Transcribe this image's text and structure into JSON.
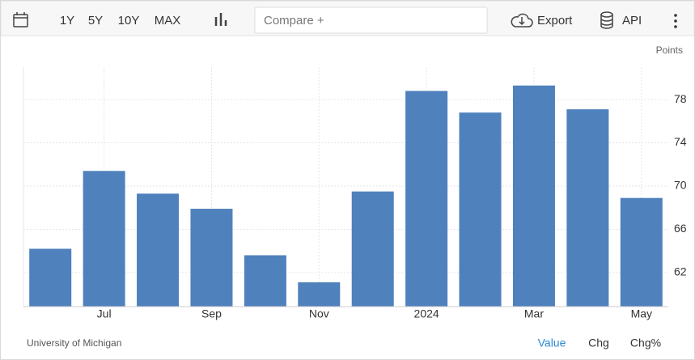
{
  "toolbar": {
    "ranges": [
      "1Y",
      "5Y",
      "10Y",
      "MAX"
    ],
    "compare": "Compare +",
    "export": "Export",
    "api": "API"
  },
  "chart_data": {
    "type": "bar",
    "y_axis_label": "Points",
    "categories": [
      null,
      "Jul",
      null,
      "Sep",
      null,
      "Nov",
      null,
      "2024",
      null,
      "Mar",
      null,
      "May"
    ],
    "values": [
      64.2,
      71.4,
      69.3,
      67.9,
      63.6,
      61.1,
      69.5,
      78.8,
      76.8,
      79.3,
      77.1,
      68.9
    ],
    "color": "#4f81bd",
    "ylim": [
      58.85,
      81
    ],
    "yticks": [
      62,
      66,
      70,
      74,
      78
    ],
    "grid": true
  },
  "footer": {
    "source": "University of Michigan",
    "tabs": [
      "Value",
      "Chg",
      "Chg%"
    ]
  }
}
